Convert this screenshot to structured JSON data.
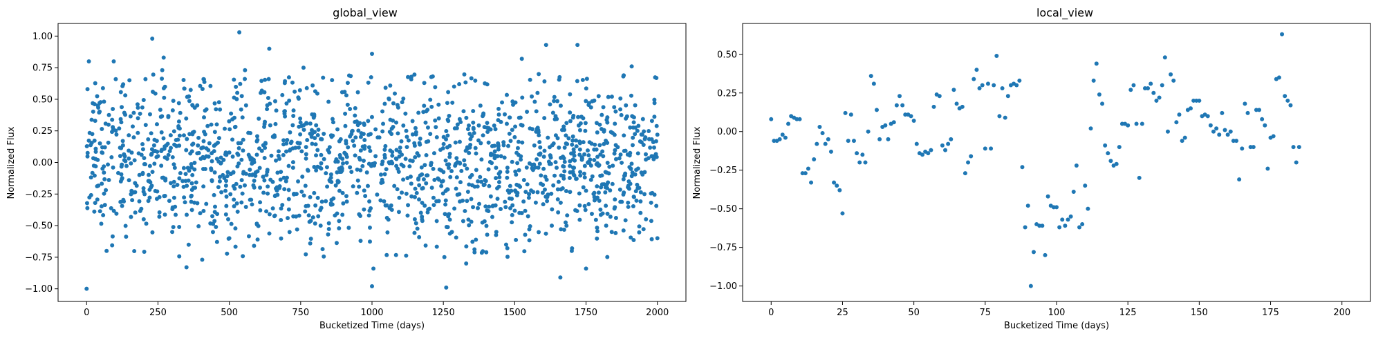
{
  "chart_data": [
    {
      "type": "scatter",
      "title": "global_view",
      "xlabel": "Bucketized Time (days)",
      "ylabel": "Normalized Flux",
      "xlim": [
        -100,
        2100
      ],
      "ylim": [
        -1.1,
        1.1
      ],
      "xticks": [
        0,
        250,
        500,
        750,
        1000,
        1250,
        1500,
        1750,
        2000
      ],
      "yticks": [
        -1.0,
        -0.75,
        -0.5,
        -0.25,
        0.0,
        0.25,
        0.5,
        0.75,
        1.0
      ],
      "xtick_labels": [
        "0",
        "250",
        "500",
        "750",
        "1000",
        "1250",
        "1500",
        "1750",
        "2000"
      ],
      "ytick_labels": [
        "−1.00",
        "−0.75",
        "−0.50",
        "−0.25",
        "0.00",
        "0.25",
        "0.50",
        "0.75",
        "1.00"
      ],
      "marker_color": "#1f77b4",
      "grid": false,
      "points": [
        [
          0,
          -1.0
        ],
        [
          8,
          0.8
        ],
        [
          40,
          0.45
        ],
        [
          70,
          -0.7
        ],
        [
          95,
          0.8
        ],
        [
          150,
          0.65
        ],
        [
          230,
          0.98
        ],
        [
          265,
          0.73
        ],
        [
          270,
          0.83
        ],
        [
          350,
          -0.83
        ],
        [
          405,
          -0.77
        ],
        [
          535,
          1.03
        ],
        [
          555,
          0.73
        ],
        [
          640,
          0.9
        ],
        [
          760,
          0.75
        ],
        [
          915,
          0.63
        ],
        [
          1000,
          -0.98
        ],
        [
          1000,
          0.86
        ],
        [
          1005,
          -0.84
        ],
        [
          1260,
          -0.99
        ],
        [
          1330,
          -0.8
        ],
        [
          1525,
          0.82
        ],
        [
          1610,
          0.93
        ],
        [
          1660,
          -0.91
        ],
        [
          1720,
          0.93
        ],
        [
          1750,
          -0.84
        ],
        [
          1910,
          0.76
        ],
        [
          1990,
          0.47
        ],
        [
          2000,
          0.22
        ],
        [
          30,
          -0.32
        ],
        [
          55,
          0.12
        ],
        [
          120,
          -0.15
        ],
        [
          180,
          0.35
        ],
        [
          200,
          -0.45
        ],
        [
          250,
          0.05
        ],
        [
          300,
          -0.55
        ],
        [
          320,
          0.18
        ],
        [
          380,
          -0.2
        ],
        [
          420,
          0.42
        ],
        [
          450,
          -0.35
        ],
        [
          480,
          0.02
        ],
        [
          500,
          -0.6
        ],
        [
          520,
          0.28
        ],
        [
          580,
          -0.1
        ],
        [
          610,
          0.55
        ],
        [
          660,
          -0.42
        ],
        [
          700,
          0.15
        ],
        [
          730,
          -0.25
        ],
        [
          790,
          0.38
        ],
        [
          820,
          -0.5
        ],
        [
          850,
          0.08
        ],
        [
          880,
          -0.15
        ],
        [
          940,
          0.32
        ],
        [
          960,
          -0.62
        ],
        [
          990,
          0.12
        ],
        [
          1030,
          -0.3
        ],
        [
          1060,
          0.5
        ],
        [
          1090,
          -0.05
        ],
        [
          1120,
          0.25
        ],
        [
          1150,
          -0.45
        ],
        [
          1180,
          0.4
        ],
        [
          1210,
          -0.2
        ],
        [
          1240,
          0.1
        ],
        [
          1280,
          -0.55
        ],
        [
          1300,
          0.3
        ],
        [
          1350,
          -0.1
        ],
        [
          1380,
          0.45
        ],
        [
          1410,
          -0.35
        ],
        [
          1440,
          0.05
        ],
        [
          1470,
          -0.65
        ],
        [
          1500,
          0.2
        ],
        [
          1550,
          -0.25
        ],
        [
          1580,
          0.55
        ],
        [
          1630,
          -0.5
        ],
        [
          1680,
          0.15
        ],
        [
          1700,
          -0.7
        ],
        [
          1740,
          0.35
        ],
        [
          1780,
          -0.3
        ],
        [
          1810,
          0.05
        ],
        [
          1840,
          -0.55
        ],
        [
          1870,
          0.42
        ],
        [
          1900,
          -0.15
        ],
        [
          1930,
          0.25
        ],
        [
          1960,
          -0.45
        ],
        [
          1980,
          0.05
        ],
        [
          2000,
          -0.6
        ]
      ],
      "noise_points": 1650
    },
    {
      "type": "scatter",
      "title": "local_view",
      "xlabel": "Bucketized Time (days)",
      "ylabel": "Normalized Flux",
      "xlim": [
        -10,
        210
      ],
      "ylim": [
        -1.1,
        0.7
      ],
      "xticks": [
        0,
        25,
        50,
        75,
        100,
        125,
        150,
        175,
        200
      ],
      "yticks": [
        -1.0,
        -0.75,
        -0.5,
        -0.25,
        0.0,
        0.25,
        0.5
      ],
      "xtick_labels": [
        "0",
        "25",
        "50",
        "75",
        "100",
        "125",
        "150",
        "175",
        "200"
      ],
      "ytick_labels": [
        "−1.00",
        "−0.75",
        "−0.50",
        "−0.25",
        "0.00",
        "0.25",
        "0.50"
      ],
      "marker_color": "#1f77b4",
      "grid": false,
      "points": [
        [
          0,
          0.08
        ],
        [
          1,
          -0.06
        ],
        [
          2,
          -0.06
        ],
        [
          3,
          -0.05
        ],
        [
          4,
          -0.02
        ],
        [
          5,
          -0.04
        ],
        [
          6,
          0.05
        ],
        [
          7,
          0.1
        ],
        [
          8,
          0.09
        ],
        [
          9,
          0.08
        ],
        [
          10,
          0.08
        ],
        [
          11,
          -0.27
        ],
        [
          12,
          -0.27
        ],
        [
          13,
          -0.24
        ],
        [
          14,
          -0.33
        ],
        [
          15,
          -0.18
        ],
        [
          16,
          -0.08
        ],
        [
          17,
          0.03
        ],
        [
          18,
          -0.01
        ],
        [
          19,
          -0.08
        ],
        [
          20,
          -0.05
        ],
        [
          21,
          -0.13
        ],
        [
          22,
          -0.33
        ],
        [
          23,
          -0.35
        ],
        [
          24,
          -0.38
        ],
        [
          25,
          -0.53
        ],
        [
          26,
          0.12
        ],
        [
          27,
          -0.06
        ],
        [
          28,
          0.11
        ],
        [
          29,
          -0.06
        ],
        [
          30,
          -0.14
        ],
        [
          31,
          -0.2
        ],
        [
          32,
          -0.15
        ],
        [
          33,
          -0.2
        ],
        [
          34,
          0.0
        ],
        [
          35,
          0.36
        ],
        [
          36,
          0.31
        ],
        [
          37,
          0.14
        ],
        [
          38,
          -0.05
        ],
        [
          39,
          0.03
        ],
        [
          40,
          0.04
        ],
        [
          41,
          -0.05
        ],
        [
          42,
          0.05
        ],
        [
          43,
          0.06
        ],
        [
          44,
          0.17
        ],
        [
          45,
          0.23
        ],
        [
          46,
          0.17
        ],
        [
          47,
          0.11
        ],
        [
          48,
          0.11
        ],
        [
          49,
          0.1
        ],
        [
          50,
          0.07
        ],
        [
          51,
          -0.08
        ],
        [
          52,
          -0.14
        ],
        [
          53,
          -0.15
        ],
        [
          54,
          -0.13
        ],
        [
          55,
          -0.14
        ],
        [
          56,
          -0.12
        ],
        [
          57,
          0.16
        ],
        [
          58,
          0.24
        ],
        [
          59,
          0.23
        ],
        [
          60,
          -0.09
        ],
        [
          61,
          -0.12
        ],
        [
          62,
          -0.08
        ],
        [
          63,
          -0.05
        ],
        [
          64,
          0.27
        ],
        [
          65,
          0.18
        ],
        [
          66,
          0.15
        ],
        [
          67,
          0.16
        ],
        [
          68,
          -0.27
        ],
        [
          69,
          -0.2
        ],
        [
          70,
          -0.16
        ],
        [
          71,
          0.34
        ],
        [
          72,
          0.4
        ],
        [
          73,
          0.28
        ],
        [
          74,
          0.3
        ],
        [
          75,
          -0.11
        ],
        [
          76,
          0.31
        ],
        [
          77,
          -0.11
        ],
        [
          78,
          0.3
        ],
        [
          79,
          0.49
        ],
        [
          80,
          0.1
        ],
        [
          81,
          0.28
        ],
        [
          82,
          0.09
        ],
        [
          83,
          0.23
        ],
        [
          84,
          0.3
        ],
        [
          85,
          0.31
        ],
        [
          86,
          0.3
        ],
        [
          87,
          0.33
        ],
        [
          88,
          -0.23
        ],
        [
          89,
          -0.62
        ],
        [
          90,
          -0.48
        ],
        [
          91,
          -1.0
        ],
        [
          92,
          -0.78
        ],
        [
          93,
          -0.6
        ],
        [
          94,
          -0.61
        ],
        [
          95,
          -0.61
        ],
        [
          96,
          -0.8
        ],
        [
          97,
          -0.42
        ],
        [
          98,
          -0.48
        ],
        [
          99,
          -0.49
        ],
        [
          100,
          -0.49
        ],
        [
          101,
          -0.62
        ],
        [
          102,
          -0.57
        ],
        [
          103,
          -0.61
        ],
        [
          104,
          -0.57
        ],
        [
          105,
          -0.55
        ],
        [
          106,
          -0.39
        ],
        [
          107,
          -0.22
        ],
        [
          108,
          -0.62
        ],
        [
          109,
          -0.6
        ],
        [
          110,
          -0.35
        ],
        [
          111,
          -0.5
        ],
        [
          112,
          0.02
        ],
        [
          113,
          0.33
        ],
        [
          114,
          0.44
        ],
        [
          115,
          0.24
        ],
        [
          116,
          0.18
        ],
        [
          117,
          -0.09
        ],
        [
          118,
          -0.14
        ],
        [
          119,
          -0.19
        ],
        [
          120,
          -0.22
        ],
        [
          121,
          -0.21
        ],
        [
          122,
          -0.1
        ],
        [
          123,
          0.05
        ],
        [
          124,
          0.05
        ],
        [
          125,
          0.04
        ],
        [
          126,
          0.27
        ],
        [
          127,
          0.3
        ],
        [
          128,
          0.05
        ],
        [
          129,
          -0.3
        ],
        [
          130,
          0.05
        ],
        [
          131,
          0.28
        ],
        [
          132,
          0.28
        ],
        [
          133,
          0.31
        ],
        [
          134,
          0.25
        ],
        [
          135,
          0.2
        ],
        [
          136,
          0.22
        ],
        [
          137,
          0.3
        ],
        [
          138,
          0.48
        ],
        [
          139,
          0.0
        ],
        [
          140,
          0.37
        ],
        [
          141,
          0.33
        ],
        [
          142,
          0.06
        ],
        [
          143,
          0.11
        ],
        [
          144,
          -0.06
        ],
        [
          145,
          -0.04
        ],
        [
          146,
          0.14
        ],
        [
          147,
          0.15
        ],
        [
          148,
          0.2
        ],
        [
          149,
          0.2
        ],
        [
          150,
          0.2
        ],
        [
          151,
          0.1
        ],
        [
          152,
          0.11
        ],
        [
          153,
          0.1
        ],
        [
          154,
          0.04
        ],
        [
          155,
          0.0
        ],
        [
          156,
          0.02
        ],
        [
          157,
          -0.02
        ],
        [
          158,
          0.12
        ],
        [
          159,
          0.01
        ],
        [
          160,
          -0.02
        ],
        [
          161,
          0.0
        ],
        [
          162,
          -0.06
        ],
        [
          163,
          -0.06
        ],
        [
          164,
          -0.31
        ],
        [
          165,
          -0.11
        ],
        [
          166,
          0.18
        ],
        [
          167,
          0.12
        ],
        [
          168,
          -0.1
        ],
        [
          169,
          -0.1
        ],
        [
          170,
          0.14
        ],
        [
          171,
          0.14
        ],
        [
          172,
          0.08
        ],
        [
          173,
          0.04
        ],
        [
          174,
          -0.24
        ],
        [
          175,
          -0.04
        ],
        [
          176,
          -0.03
        ],
        [
          177,
          0.34
        ],
        [
          178,
          0.35
        ],
        [
          179,
          0.63
        ],
        [
          180,
          0.23
        ],
        [
          181,
          0.2
        ],
        [
          182,
          0.17
        ],
        [
          183,
          -0.1
        ],
        [
          184,
          -0.2
        ],
        [
          185,
          -0.1
        ]
      ]
    }
  ]
}
